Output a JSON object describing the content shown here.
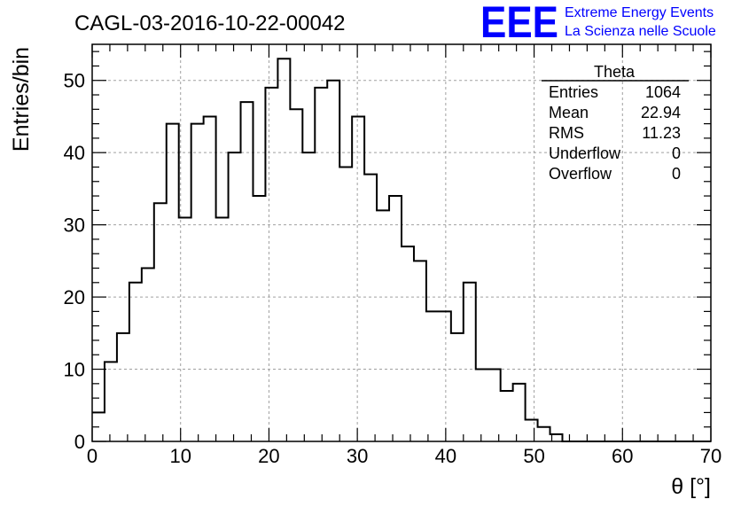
{
  "title": "CAGL-03-2016-10-22-00042",
  "logo": {
    "mark": "EEE",
    "line1": "Extreme Energy Events",
    "line2": "La Scienza nelle Scuole",
    "color": "#0000ff"
  },
  "stats": {
    "title": "Theta",
    "rows": [
      {
        "label": "Entries",
        "value": "1064"
      },
      {
        "label": "Mean",
        "value": "22.94"
      },
      {
        "label": "RMS",
        "value": "11.23"
      },
      {
        "label": "Underflow",
        "value": "0"
      },
      {
        "label": "Overflow",
        "value": "0"
      }
    ]
  },
  "chart_data": {
    "type": "histogram",
    "title": "CAGL-03-2016-10-22-00042",
    "xlabel": "θ [°]",
    "ylabel": "Entries/bin",
    "xlim": [
      0,
      70
    ],
    "ylim": [
      0,
      55
    ],
    "grid": true,
    "bin_width": 1.4,
    "bin_start": 0,
    "values": [
      4,
      11,
      15,
      22,
      24,
      33,
      44,
      31,
      44,
      45,
      31,
      40,
      47,
      34,
      49,
      53,
      46,
      40,
      49,
      50,
      38,
      45,
      37,
      32,
      34,
      27,
      25,
      18,
      18,
      15,
      22,
      10,
      10,
      7,
      8,
      3,
      2,
      1,
      0,
      0,
      0,
      0,
      0,
      0,
      0,
      0,
      0,
      0,
      0,
      0
    ],
    "xticks": [
      0,
      10,
      20,
      30,
      40,
      50,
      60,
      70
    ],
    "yticks": [
      0,
      10,
      20,
      30,
      40,
      50
    ],
    "line_color": "#000000"
  }
}
